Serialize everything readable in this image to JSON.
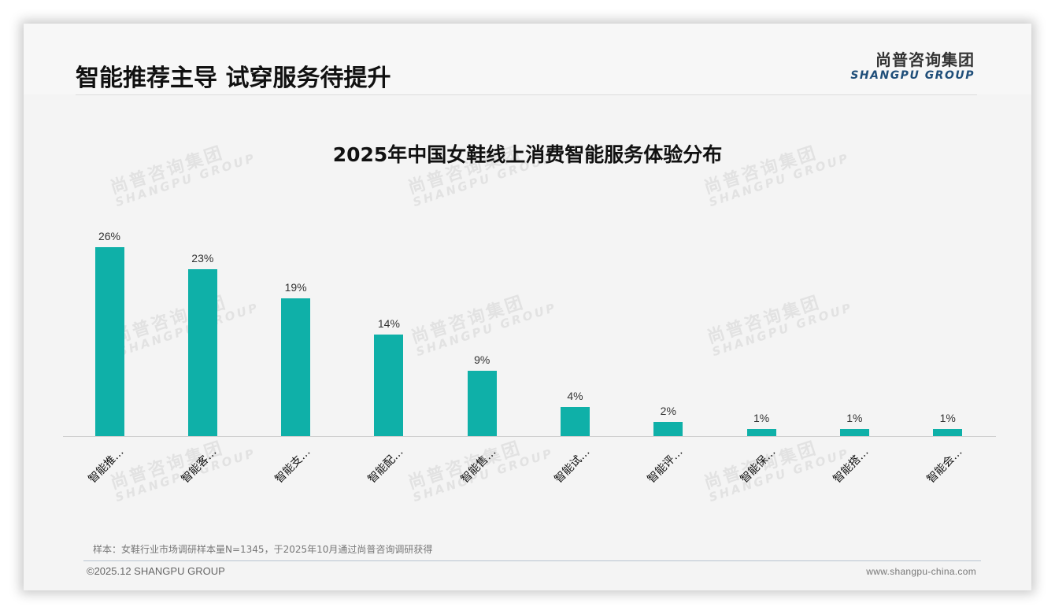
{
  "header": {
    "title": "智能推荐主导 试穿服务待提升",
    "logo_cn": "尚普咨询集团",
    "logo_en": "SHANGPU GROUP"
  },
  "watermark": {
    "cn": "尚普咨询集团",
    "en": "SHANGPU GROUP"
  },
  "chart_data": {
    "type": "bar",
    "title": "2025年中国女鞋线上消费智能服务体验分布",
    "categories": [
      "智能推…",
      "智能客…",
      "智能支…",
      "智能配…",
      "智能售…",
      "智能试…",
      "智能评…",
      "智能保…",
      "智能搭…",
      "智能会…"
    ],
    "values": [
      26,
      23,
      19,
      14,
      9,
      4,
      2,
      1,
      1,
      1
    ],
    "value_labels": [
      "26%",
      "23%",
      "19%",
      "14%",
      "9%",
      "4%",
      "2%",
      "1%",
      "1%",
      "1%"
    ],
    "unit": "%",
    "xlabel": "",
    "ylabel": "",
    "ylim": [
      0,
      30
    ],
    "grid": false,
    "legend": null,
    "bar_color": "#0fb0a8"
  },
  "footer": {
    "note": "样本：女鞋行业市场调研样本量N=1345，于2025年10月通过尚普咨询调研获得",
    "copyright": "©2025.12 SHANGPU GROUP",
    "website": "www.shangpu-china.com"
  }
}
